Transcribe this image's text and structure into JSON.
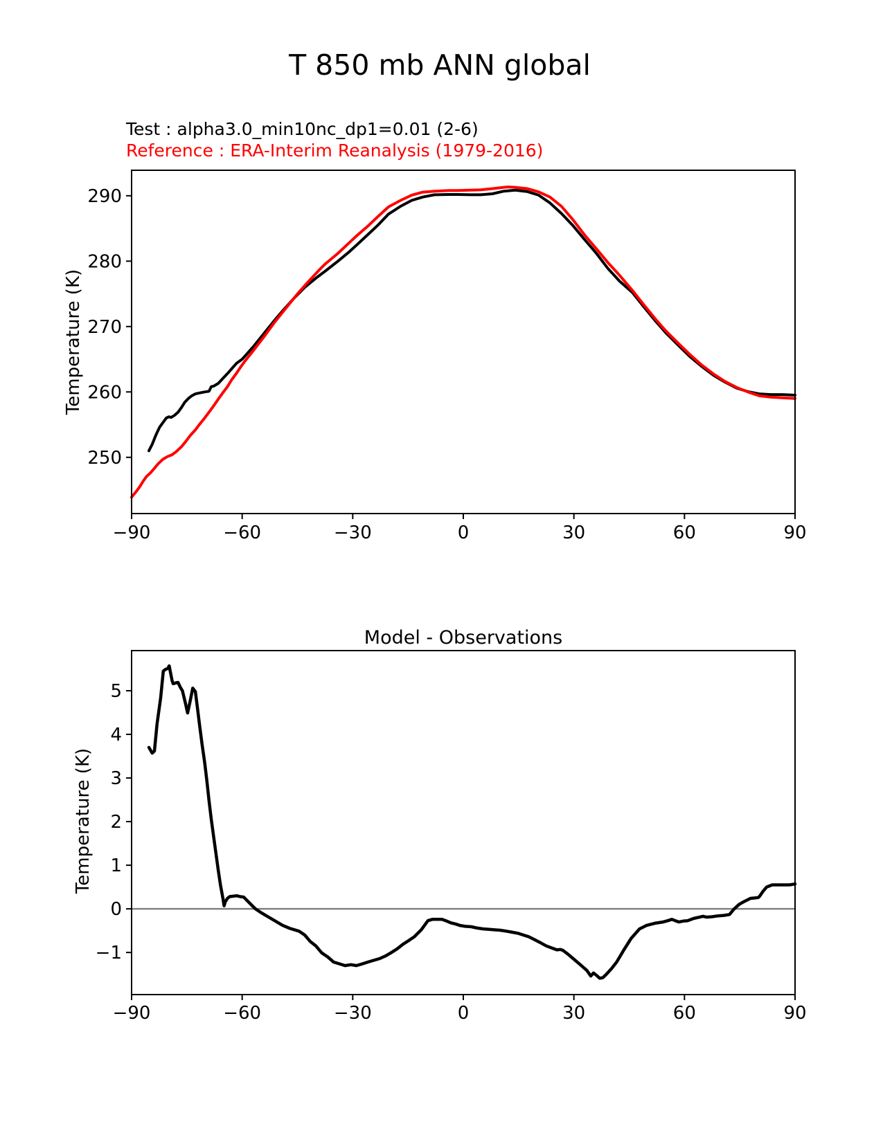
{
  "header": {
    "title": "T 850 mb ANN global"
  },
  "annotations": {
    "test_label": "Test : alpha3.0_min10nc_dp1=0.01 (2-6)",
    "reference_label": "Reference : ERA-Interim Reanalysis (1979-2016)",
    "test_color": "#000000",
    "reference_color": "#ff0000"
  },
  "colors": {
    "text": "#000000",
    "spine": "#000000",
    "zero_line": "#808080",
    "background": "#ffffff"
  },
  "chart_data": [
    {
      "type": "line",
      "id": "zonal-mean-temperature",
      "title": "",
      "xlabel": "",
      "ylabel": "Temperature (K)",
      "xlim": [
        -90,
        90
      ],
      "ylim": [
        241.4,
        293.9
      ],
      "grid": false,
      "legend_position": "text annotations above axes (Test black, Reference red)",
      "xticks": {
        "values": [
          -90,
          -60,
          -30,
          0,
          30,
          60,
          90
        ],
        "labels": [
          "−90",
          "−60",
          "−30",
          "0",
          "30",
          "60",
          "90"
        ]
      },
      "yticks": {
        "values": [
          250,
          260,
          270,
          280,
          290
        ],
        "labels": [
          "250",
          "260",
          "270",
          "280",
          "290"
        ]
      },
      "series": [
        {
          "name": "Test",
          "color": "#000000",
          "x": [
            -85.3,
            -84.4,
            -83.4,
            -82.4,
            -81.5,
            -80.6,
            -79.9,
            -79.3,
            -78.4,
            -77.4,
            -76.5,
            -75.6,
            -74.6,
            -73.7,
            -72.7,
            -71.5,
            -70.2,
            -69.0,
            -68.4,
            -67.7,
            -67.1,
            -66.5,
            -64.0,
            -61.5,
            -60,
            -57,
            -54,
            -51,
            -49,
            -46,
            -43,
            -40,
            -37.4,
            -34,
            -31,
            -28.7,
            -26,
            -23,
            -20.3,
            -17,
            -14,
            -11,
            -7.8,
            -4,
            -1.5,
            2,
            4.7,
            7.9,
            11,
            14.1,
            17.3,
            20.4,
            23.5,
            26.6,
            29.8,
            32.9,
            36.1,
            39.2,
            42.3,
            45.9,
            49,
            52.2,
            55,
            58.4,
            61.5,
            64.7,
            68,
            71,
            74.1,
            77.2,
            80.3,
            83.4,
            86.5,
            90
          ],
          "y": [
            251.0,
            252.0,
            253.4,
            254.6,
            255.3,
            256.0,
            256.2,
            256.1,
            256.4,
            256.9,
            257.6,
            258.4,
            259.0,
            259.4,
            259.7,
            259.85,
            260.0,
            260.1,
            260.8,
            260.9,
            261.1,
            261.3,
            262.8,
            264.4,
            265.0,
            266.9,
            269.0,
            271.1,
            272.4,
            274.3,
            276.0,
            277.4,
            278.5,
            280.0,
            281.4,
            282.6,
            284.0,
            285.6,
            287.2,
            288.4,
            289.3,
            289.8,
            290.15,
            290.2,
            290.2,
            290.15,
            290.15,
            290.3,
            290.7,
            290.85,
            290.65,
            290.1,
            288.9,
            287.3,
            285.4,
            283.3,
            281.2,
            278.9,
            277.0,
            275.2,
            273.0,
            270.8,
            269.0,
            267.1,
            265.4,
            263.9,
            262.5,
            261.5,
            260.6,
            260.05,
            259.7,
            259.6,
            259.6,
            259.5
          ]
        },
        {
          "name": "Reference",
          "color": "#ff0000",
          "x": [
            -90,
            -88.7,
            -87.8,
            -86.8,
            -85.9,
            -84.9,
            -84,
            -82.8,
            -81.5,
            -80.3,
            -79.0,
            -77.8,
            -76.5,
            -75.2,
            -74.0,
            -72.7,
            -71.5,
            -70.2,
            -69.0,
            -67.7,
            -66.5,
            -65.2,
            -64.0,
            -62.8,
            -61.5,
            -60.3,
            -59.4,
            -57,
            -54,
            -51,
            -48,
            -45,
            -42,
            -39,
            -37.4,
            -34,
            -31,
            -28.7,
            -26,
            -23,
            -20.3,
            -17,
            -14,
            -11,
            -7.8,
            -4,
            -1.5,
            1.6,
            4.7,
            8,
            11,
            12.2,
            14,
            17.3,
            20.4,
            23.5,
            26.6,
            29.8,
            32.9,
            36.1,
            39.2,
            42.3,
            45.9,
            49,
            52.2,
            55,
            58.4,
            61.5,
            64.7,
            68,
            71,
            74.1,
            77.2,
            80.3,
            83.4,
            86.5,
            90
          ],
          "y": [
            243.9,
            244.8,
            245.5,
            246.4,
            247.1,
            247.6,
            248.2,
            249.0,
            249.7,
            250.1,
            250.4,
            250.9,
            251.6,
            252.5,
            253.4,
            254.2,
            255.1,
            256.0,
            256.9,
            257.9,
            258.9,
            259.9,
            260.8,
            261.9,
            262.9,
            263.9,
            264.6,
            266.3,
            268.5,
            270.8,
            272.9,
            275.0,
            276.9,
            278.7,
            279.6,
            281.2,
            282.8,
            284.0,
            285.3,
            286.9,
            288.3,
            289.3,
            290.1,
            290.55,
            290.7,
            290.8,
            290.8,
            290.85,
            290.9,
            291.1,
            291.3,
            291.35,
            291.3,
            291.1,
            290.6,
            289.8,
            288.4,
            286.3,
            284.0,
            281.9,
            279.8,
            277.9,
            275.5,
            273.3,
            271.1,
            269.3,
            267.4,
            265.7,
            264.1,
            262.7,
            261.6,
            260.7,
            260.0,
            259.4,
            259.2,
            259.1,
            259.0
          ]
        }
      ]
    },
    {
      "type": "line",
      "id": "model-minus-observations",
      "title": "Model - Observations",
      "xlabel": "",
      "ylabel": "Temperature (K)",
      "xlim": [
        -90,
        90
      ],
      "ylim": [
        -1.965,
        5.92
      ],
      "grid": false,
      "zero_line": {
        "y": 0,
        "color": "#808080"
      },
      "xticks": {
        "values": [
          -90,
          -60,
          -30,
          0,
          30,
          60,
          90
        ],
        "labels": [
          "−90",
          "−60",
          "−30",
          "0",
          "30",
          "60",
          "90"
        ]
      },
      "yticks": {
        "values": [
          -1,
          0,
          1,
          2,
          3,
          4,
          5
        ],
        "labels": [
          "−1",
          "0",
          "1",
          "2",
          "3",
          "4",
          "5"
        ]
      },
      "series": [
        {
          "name": "Model - Observations",
          "color": "#000000",
          "x": [
            -85.3,
            -84.4,
            -83.8,
            -83.1,
            -82.1,
            -81.4,
            -80.8,
            -80.2,
            -79.8,
            -79.0,
            -78.7,
            -78.0,
            -77.4,
            -76.8,
            -76.2,
            -75.5,
            -74.8,
            -74.0,
            -73.4,
            -72.7,
            -72.1,
            -71.5,
            -70.9,
            -70.2,
            -69.6,
            -69.0,
            -68.4,
            -67.7,
            -67.1,
            -66.5,
            -65.9,
            -65.2,
            -64.9,
            -64.6,
            -64.0,
            -63.4,
            -62.5,
            -61.5,
            -60.5,
            -59.6,
            -58.3,
            -57.0,
            -56.4,
            -55.0,
            -53.0,
            -51.0,
            -49.0,
            -47.0,
            -44.6,
            -43.0,
            -41.5,
            -40.0,
            -38.4,
            -36.8,
            -35.2,
            -33.6,
            -32.1,
            -30.5,
            -29.0,
            -27.4,
            -25.9,
            -24.3,
            -22.7,
            -21.1,
            -19.7,
            -18.0,
            -16.5,
            -14.9,
            -13.3,
            -11.4,
            -9.6,
            -8.4,
            -7.0,
            -5.8,
            -4.5,
            -3.4,
            -2.0,
            -0.9,
            0.5,
            2.2,
            3.8,
            5.4,
            7.0,
            8.4,
            10.0,
            11.6,
            13.0,
            14.8,
            16.3,
            17.8,
            19.4,
            21.0,
            22.5,
            24.1,
            25.4,
            26.3,
            27.0,
            28.4,
            29.8,
            31.6,
            33.5,
            34.6,
            35.3,
            36.1,
            37.0,
            37.8,
            38.8,
            40.2,
            41.6,
            43.5,
            45.5,
            47.8,
            49.7,
            52.0,
            54.2,
            55.5,
            56.6,
            57.5,
            58.5,
            59.7,
            60.9,
            62.5,
            64.1,
            65.0,
            66.0,
            67.5,
            69.2,
            70.7,
            72.2,
            73.5,
            74.8,
            76.0,
            77.9,
            79.1,
            80.0,
            80.4,
            81.3,
            82.3,
            83.8,
            85.5,
            87.2,
            88.5,
            90.0
          ],
          "y": [
            3.7,
            3.57,
            3.62,
            4.23,
            4.84,
            5.45,
            5.49,
            5.51,
            5.57,
            5.23,
            5.16,
            5.18,
            5.19,
            5.08,
            5.0,
            4.75,
            4.49,
            4.81,
            5.06,
            4.98,
            4.58,
            4.17,
            3.78,
            3.37,
            2.95,
            2.48,
            2.06,
            1.63,
            1.26,
            0.89,
            0.55,
            0.23,
            0.07,
            0.16,
            0.24,
            0.28,
            0.29,
            0.3,
            0.28,
            0.27,
            0.16,
            0.05,
            0.0,
            -0.08,
            -0.18,
            -0.28,
            -0.38,
            -0.45,
            -0.51,
            -0.6,
            -0.75,
            -0.85,
            -1.01,
            -1.1,
            -1.22,
            -1.26,
            -1.3,
            -1.28,
            -1.3,
            -1.26,
            -1.22,
            -1.18,
            -1.14,
            -1.08,
            -1.01,
            -0.92,
            -0.82,
            -0.73,
            -0.64,
            -0.48,
            -0.27,
            -0.24,
            -0.24,
            -0.24,
            -0.28,
            -0.32,
            -0.35,
            -0.38,
            -0.4,
            -0.41,
            -0.44,
            -0.46,
            -0.47,
            -0.48,
            -0.49,
            -0.51,
            -0.53,
            -0.56,
            -0.6,
            -0.64,
            -0.71,
            -0.78,
            -0.85,
            -0.9,
            -0.94,
            -0.93,
            -0.95,
            -1.04,
            -1.14,
            -1.27,
            -1.41,
            -1.54,
            -1.47,
            -1.52,
            -1.59,
            -1.58,
            -1.5,
            -1.37,
            -1.22,
            -0.95,
            -0.68,
            -0.46,
            -0.38,
            -0.33,
            -0.3,
            -0.27,
            -0.24,
            -0.27,
            -0.3,
            -0.28,
            -0.27,
            -0.22,
            -0.19,
            -0.17,
            -0.19,
            -0.18,
            -0.16,
            -0.15,
            -0.13,
            0.0,
            0.1,
            0.16,
            0.24,
            0.25,
            0.26,
            0.29,
            0.4,
            0.5,
            0.55,
            0.55,
            0.55,
            0.55,
            0.57
          ]
        }
      ]
    }
  ]
}
